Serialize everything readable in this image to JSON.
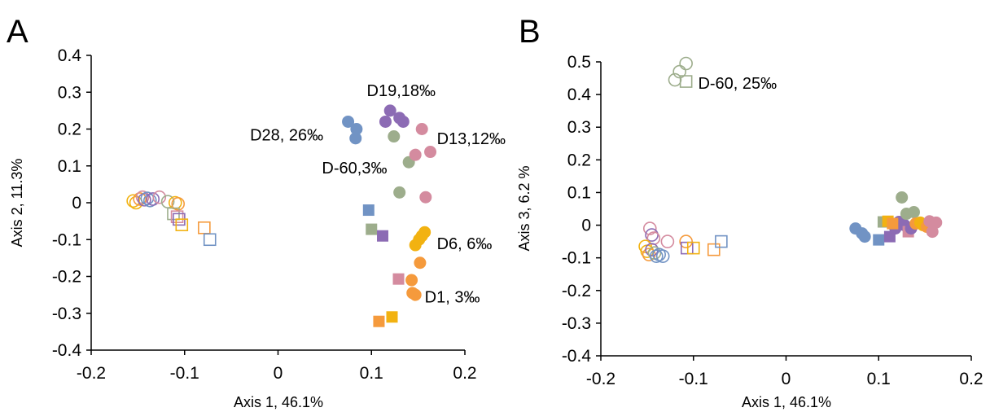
{
  "colors": {
    "D1": "#F59A3C",
    "D6": "#F2B211",
    "D13": "#D48B9F",
    "D19": "#8C6BB4",
    "D28": "#7193C4",
    "D-60": "#9DAD8C"
  },
  "chart_data": [
    {
      "type": "scatter",
      "panel_label": "A",
      "xlabel": "Axis 1, 46.1%",
      "ylabel": "Axis 2, 11.3%",
      "xlim": [
        -0.2,
        0.2
      ],
      "ylim": [
        -0.4,
        0.4
      ],
      "xticks": [
        "-0.2",
        "-0.1",
        "0",
        "0.1",
        "0.2"
      ],
      "yticks": [
        "0.4",
        "0.3",
        "0.2",
        "0.1",
        "0",
        "-0.1",
        "-0.2",
        "-0.3",
        "-0.4"
      ],
      "annotations": [
        {
          "text": "D19,18‰",
          "x": 0.095,
          "y": 0.305
        },
        {
          "text": "D28, 26‰",
          "x": -0.03,
          "y": 0.185
        },
        {
          "text": "D13,12‰",
          "x": 0.17,
          "y": 0.175
        },
        {
          "text": "D-60,3‰",
          "x": 0.047,
          "y": 0.095
        },
        {
          "text": "D6, 6‰",
          "x": 0.17,
          "y": -0.11
        },
        {
          "text": "D1, 3‰",
          "x": 0.157,
          "y": -0.255
        }
      ],
      "points": [
        {
          "x": 0.083,
          "y": 0.175,
          "shape": "circle",
          "filled": true,
          "color": "D28"
        },
        {
          "x": 0.084,
          "y": 0.2,
          "shape": "circle",
          "filled": true,
          "color": "D28"
        },
        {
          "x": 0.075,
          "y": 0.22,
          "shape": "circle",
          "filled": true,
          "color": "D28"
        },
        {
          "x": 0.12,
          "y": 0.25,
          "shape": "circle",
          "filled": true,
          "color": "D19"
        },
        {
          "x": 0.115,
          "y": 0.22,
          "shape": "circle",
          "filled": true,
          "color": "D19"
        },
        {
          "x": 0.13,
          "y": 0.23,
          "shape": "circle",
          "filled": true,
          "color": "D19"
        },
        {
          "x": 0.134,
          "y": 0.22,
          "shape": "circle",
          "filled": true,
          "color": "D19"
        },
        {
          "x": 0.124,
          "y": 0.18,
          "shape": "circle",
          "filled": true,
          "color": "D-60"
        },
        {
          "x": 0.14,
          "y": 0.11,
          "shape": "circle",
          "filled": true,
          "color": "D-60"
        },
        {
          "x": 0.13,
          "y": 0.028,
          "shape": "circle",
          "filled": true,
          "color": "D-60"
        },
        {
          "x": 0.154,
          "y": 0.2,
          "shape": "circle",
          "filled": true,
          "color": "D13"
        },
        {
          "x": 0.147,
          "y": 0.13,
          "shape": "circle",
          "filled": true,
          "color": "D13"
        },
        {
          "x": 0.163,
          "y": 0.138,
          "shape": "circle",
          "filled": true,
          "color": "D13"
        },
        {
          "x": 0.158,
          "y": 0.015,
          "shape": "circle",
          "filled": true,
          "color": "D13"
        },
        {
          "x": 0.157,
          "y": -0.08,
          "shape": "circle",
          "filled": true,
          "color": "D6"
        },
        {
          "x": 0.154,
          "y": -0.09,
          "shape": "circle",
          "filled": true,
          "color": "D6"
        },
        {
          "x": 0.151,
          "y": -0.1,
          "shape": "circle",
          "filled": true,
          "color": "D6"
        },
        {
          "x": 0.147,
          "y": -0.115,
          "shape": "circle",
          "filled": true,
          "color": "D6"
        },
        {
          "x": 0.152,
          "y": -0.163,
          "shape": "circle",
          "filled": true,
          "color": "D1"
        },
        {
          "x": 0.143,
          "y": -0.21,
          "shape": "circle",
          "filled": true,
          "color": "D1"
        },
        {
          "x": 0.144,
          "y": -0.245,
          "shape": "circle",
          "filled": true,
          "color": "D1"
        },
        {
          "x": 0.147,
          "y": -0.25,
          "shape": "circle",
          "filled": true,
          "color": "D1"
        },
        {
          "x": 0.097,
          "y": -0.02,
          "shape": "square",
          "filled": true,
          "color": "D28"
        },
        {
          "x": 0.1,
          "y": -0.072,
          "shape": "square",
          "filled": true,
          "color": "D-60"
        },
        {
          "x": 0.112,
          "y": -0.09,
          "shape": "square",
          "filled": true,
          "color": "D19"
        },
        {
          "x": 0.129,
          "y": -0.207,
          "shape": "square",
          "filled": true,
          "color": "D13"
        },
        {
          "x": 0.122,
          "y": -0.31,
          "shape": "square",
          "filled": true,
          "color": "D6"
        },
        {
          "x": 0.108,
          "y": -0.322,
          "shape": "square",
          "filled": true,
          "color": "D1"
        },
        {
          "x": -0.155,
          "y": 0.005,
          "shape": "circle",
          "filled": false,
          "color": "D6"
        },
        {
          "x": -0.152,
          "y": 0.0,
          "shape": "circle",
          "filled": false,
          "color": "D6"
        },
        {
          "x": -0.148,
          "y": 0.01,
          "shape": "circle",
          "filled": false,
          "color": "D1"
        },
        {
          "x": -0.145,
          "y": 0.015,
          "shape": "circle",
          "filled": false,
          "color": "D13"
        },
        {
          "x": -0.143,
          "y": 0.008,
          "shape": "circle",
          "filled": false,
          "color": "D19"
        },
        {
          "x": -0.14,
          "y": 0.012,
          "shape": "circle",
          "filled": false,
          "color": "D28"
        },
        {
          "x": -0.137,
          "y": 0.006,
          "shape": "circle",
          "filled": false,
          "color": "D28"
        },
        {
          "x": -0.134,
          "y": 0.01,
          "shape": "circle",
          "filled": false,
          "color": "D19"
        },
        {
          "x": -0.127,
          "y": 0.015,
          "shape": "circle",
          "filled": false,
          "color": "D13"
        },
        {
          "x": -0.118,
          "y": 0.003,
          "shape": "circle",
          "filled": false,
          "color": "D-60"
        },
        {
          "x": -0.11,
          "y": 0.0,
          "shape": "circle",
          "filled": false,
          "color": "D6"
        },
        {
          "x": -0.107,
          "y": -0.003,
          "shape": "circle",
          "filled": false,
          "color": "D1"
        },
        {
          "x": -0.112,
          "y": -0.03,
          "shape": "square",
          "filled": false,
          "color": "D-60"
        },
        {
          "x": -0.108,
          "y": -0.038,
          "shape": "square",
          "filled": false,
          "color": "D13"
        },
        {
          "x": -0.106,
          "y": -0.045,
          "shape": "square",
          "filled": false,
          "color": "D19"
        },
        {
          "x": -0.103,
          "y": -0.06,
          "shape": "square",
          "filled": false,
          "color": "D6"
        },
        {
          "x": -0.079,
          "y": -0.068,
          "shape": "square",
          "filled": false,
          "color": "D1"
        },
        {
          "x": -0.073,
          "y": -0.1,
          "shape": "square",
          "filled": false,
          "color": "D28"
        }
      ]
    },
    {
      "type": "scatter",
      "panel_label": "B",
      "xlabel": "Axis 1, 46.1%",
      "ylabel": "Axis 3, 6.2 %",
      "xlim": [
        -0.2,
        0.2
      ],
      "ylim": [
        -0.4,
        0.5
      ],
      "xticks": [
        "-0.2",
        "-0.1",
        "0",
        "0.1",
        "0.2"
      ],
      "yticks": [
        "0.5",
        "0.4",
        "0.3",
        "0.2",
        "0.1",
        "0",
        "-0.1",
        "-0.2",
        "-0.3",
        "-0.4"
      ],
      "annotations": [
        {
          "text": "D-60, 25‰",
          "x": -0.095,
          "y": 0.435
        }
      ],
      "points": [
        {
          "x": -0.108,
          "y": 0.495,
          "shape": "circle",
          "filled": false,
          "color": "D-60"
        },
        {
          "x": -0.115,
          "y": 0.47,
          "shape": "circle",
          "filled": false,
          "color": "D-60"
        },
        {
          "x": -0.12,
          "y": 0.445,
          "shape": "circle",
          "filled": false,
          "color": "D-60"
        },
        {
          "x": -0.108,
          "y": 0.44,
          "shape": "square",
          "filled": false,
          "color": "D-60"
        },
        {
          "x": -0.147,
          "y": -0.01,
          "shape": "circle",
          "filled": false,
          "color": "D13"
        },
        {
          "x": -0.145,
          "y": -0.03,
          "shape": "circle",
          "filled": false,
          "color": "D19"
        },
        {
          "x": -0.143,
          "y": -0.04,
          "shape": "circle",
          "filled": false,
          "color": "D13"
        },
        {
          "x": -0.152,
          "y": -0.065,
          "shape": "circle",
          "filled": false,
          "color": "D6"
        },
        {
          "x": -0.15,
          "y": -0.08,
          "shape": "circle",
          "filled": false,
          "color": "D6"
        },
        {
          "x": -0.148,
          "y": -0.09,
          "shape": "circle",
          "filled": false,
          "color": "D1"
        },
        {
          "x": -0.145,
          "y": -0.075,
          "shape": "circle",
          "filled": false,
          "color": "D19"
        },
        {
          "x": -0.142,
          "y": -0.085,
          "shape": "circle",
          "filled": false,
          "color": "D-60"
        },
        {
          "x": -0.14,
          "y": -0.095,
          "shape": "circle",
          "filled": false,
          "color": "D28"
        },
        {
          "x": -0.137,
          "y": -0.09,
          "shape": "circle",
          "filled": false,
          "color": "D28"
        },
        {
          "x": -0.133,
          "y": -0.095,
          "shape": "circle",
          "filled": false,
          "color": "D28"
        },
        {
          "x": -0.128,
          "y": -0.05,
          "shape": "circle",
          "filled": false,
          "color": "D13"
        },
        {
          "x": -0.108,
          "y": -0.05,
          "shape": "circle",
          "filled": false,
          "color": "D1"
        },
        {
          "x": -0.107,
          "y": -0.07,
          "shape": "square",
          "filled": false,
          "color": "D19"
        },
        {
          "x": -0.1,
          "y": -0.07,
          "shape": "square",
          "filled": false,
          "color": "D6"
        },
        {
          "x": -0.078,
          "y": -0.075,
          "shape": "square",
          "filled": false,
          "color": "D1"
        },
        {
          "x": -0.07,
          "y": -0.05,
          "shape": "square",
          "filled": false,
          "color": "D28"
        },
        {
          "x": 0.075,
          "y": -0.01,
          "shape": "circle",
          "filled": true,
          "color": "D28"
        },
        {
          "x": 0.082,
          "y": -0.025,
          "shape": "circle",
          "filled": true,
          "color": "D28"
        },
        {
          "x": 0.085,
          "y": -0.035,
          "shape": "circle",
          "filled": true,
          "color": "D28"
        },
        {
          "x": 0.1,
          "y": -0.045,
          "shape": "square",
          "filled": true,
          "color": "D28"
        },
        {
          "x": 0.112,
          "y": -0.035,
          "shape": "square",
          "filled": true,
          "color": "D19"
        },
        {
          "x": 0.118,
          "y": -0.01,
          "shape": "circle",
          "filled": true,
          "color": "D19"
        },
        {
          "x": 0.122,
          "y": 0.01,
          "shape": "circle",
          "filled": true,
          "color": "D19"
        },
        {
          "x": 0.128,
          "y": 0.0,
          "shape": "circle",
          "filled": true,
          "color": "D19"
        },
        {
          "x": 0.125,
          "y": 0.085,
          "shape": "circle",
          "filled": true,
          "color": "D-60"
        },
        {
          "x": 0.13,
          "y": 0.035,
          "shape": "circle",
          "filled": true,
          "color": "D-60"
        },
        {
          "x": 0.138,
          "y": 0.04,
          "shape": "circle",
          "filled": true,
          "color": "D-60"
        },
        {
          "x": 0.105,
          "y": 0.01,
          "shape": "square",
          "filled": true,
          "color": "D-60"
        },
        {
          "x": 0.11,
          "y": 0.012,
          "shape": "square",
          "filled": true,
          "color": "D6"
        },
        {
          "x": 0.115,
          "y": 0.005,
          "shape": "square",
          "filled": true,
          "color": "D1"
        },
        {
          "x": 0.132,
          "y": -0.02,
          "shape": "square",
          "filled": true,
          "color": "D13"
        },
        {
          "x": 0.135,
          "y": -0.01,
          "shape": "circle",
          "filled": true,
          "color": "D19"
        },
        {
          "x": 0.14,
          "y": 0.005,
          "shape": "circle",
          "filled": true,
          "color": "D1"
        },
        {
          "x": 0.145,
          "y": 0.008,
          "shape": "circle",
          "filled": true,
          "color": "D6"
        },
        {
          "x": 0.148,
          "y": 0.0,
          "shape": "circle",
          "filled": true,
          "color": "D6"
        },
        {
          "x": 0.152,
          "y": -0.005,
          "shape": "circle",
          "filled": true,
          "color": "D1"
        },
        {
          "x": 0.155,
          "y": 0.012,
          "shape": "circle",
          "filled": true,
          "color": "D13"
        },
        {
          "x": 0.158,
          "y": -0.02,
          "shape": "circle",
          "filled": true,
          "color": "D13"
        },
        {
          "x": 0.162,
          "y": 0.008,
          "shape": "circle",
          "filled": true,
          "color": "D13"
        }
      ]
    }
  ]
}
